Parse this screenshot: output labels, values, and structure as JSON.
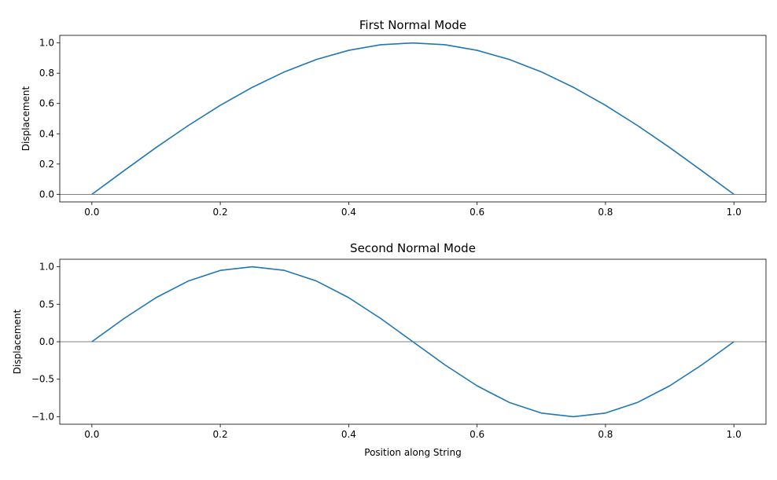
{
  "chart_data": [
    {
      "type": "line",
      "title": "First Normal Mode",
      "xlabel": "",
      "ylabel": "Displacement",
      "xlim": [
        -0.05,
        1.05
      ],
      "ylim": [
        -0.05,
        1.05
      ],
      "xticks": [
        0.0,
        0.2,
        0.4,
        0.6,
        0.8,
        1.0
      ],
      "xtick_labels": [
        "0.0",
        "0.2",
        "0.4",
        "0.6",
        "0.8",
        "1.0"
      ],
      "yticks": [
        0.0,
        0.2,
        0.4,
        0.6,
        0.8,
        1.0
      ],
      "ytick_labels": [
        "0.0",
        "0.2",
        "0.4",
        "0.6",
        "0.8",
        "1.0"
      ],
      "grid": false,
      "reference_line_y": 0,
      "series": [
        {
          "color": "#1f77b4",
          "x": [
            0.0,
            0.05,
            0.1,
            0.15,
            0.2,
            0.25,
            0.3,
            0.35,
            0.4,
            0.45,
            0.5,
            0.55,
            0.6,
            0.65,
            0.7,
            0.75,
            0.8,
            0.85,
            0.9,
            0.95,
            1.0
          ],
          "y": [
            0.0,
            0.156,
            0.309,
            0.454,
            0.588,
            0.707,
            0.809,
            0.891,
            0.951,
            0.988,
            1.0,
            0.988,
            0.951,
            0.891,
            0.809,
            0.707,
            0.588,
            0.454,
            0.309,
            0.156,
            0.0
          ]
        }
      ]
    },
    {
      "type": "line",
      "title": "Second Normal Mode",
      "xlabel": "Position along String",
      "ylabel": "Displacement",
      "xlim": [
        -0.05,
        1.05
      ],
      "ylim": [
        -1.1,
        1.1
      ],
      "xticks": [
        0.0,
        0.2,
        0.4,
        0.6,
        0.8,
        1.0
      ],
      "xtick_labels": [
        "0.0",
        "0.2",
        "0.4",
        "0.6",
        "0.8",
        "1.0"
      ],
      "yticks": [
        -1.0,
        -0.5,
        0.0,
        0.5,
        1.0
      ],
      "ytick_labels": [
        "−1.0",
        "−0.5",
        "0.0",
        "0.5",
        "1.0"
      ],
      "grid": false,
      "reference_line_y": 0,
      "series": [
        {
          "color": "#1f77b4",
          "x": [
            0.0,
            0.05,
            0.1,
            0.15,
            0.2,
            0.25,
            0.3,
            0.35,
            0.4,
            0.45,
            0.5,
            0.55,
            0.6,
            0.65,
            0.7,
            0.75,
            0.8,
            0.85,
            0.9,
            0.95,
            1.0
          ],
          "y": [
            0.0,
            0.309,
            0.588,
            0.809,
            0.951,
            1.0,
            0.951,
            0.809,
            0.588,
            0.309,
            0.0,
            -0.309,
            -0.588,
            -0.809,
            -0.951,
            -1.0,
            -0.951,
            -0.809,
            -0.588,
            -0.309,
            0.0
          ]
        }
      ]
    }
  ]
}
